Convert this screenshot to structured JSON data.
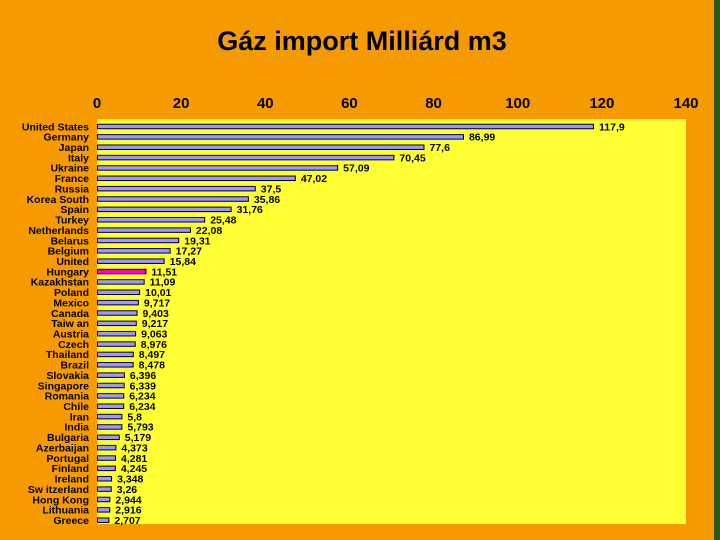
{
  "colors": {
    "slide_background": "#f59a00",
    "plot_background": "#ffff33",
    "bar_fill": "#9999ff",
    "highlight_bar_fill": "#ff00cc",
    "frame_green": "#2f5a14"
  },
  "chart_data": {
    "type": "bar",
    "orientation": "horizontal",
    "title": "Gáz import Milliárd m3",
    "xlabel": "",
    "ylabel": "",
    "xlim": [
      0,
      140
    ],
    "xticks": [
      0,
      20,
      40,
      60,
      80,
      100,
      120,
      140
    ],
    "axis_position": "top",
    "grid": false,
    "legend": "none",
    "highlight": "Hungary",
    "categories": [
      "United States",
      "Germany",
      "Japan",
      "Italy",
      "Ukraine",
      "France",
      "Russia",
      "Korea South",
      "Spain",
      "Turkey",
      "Netherlands",
      "Belarus",
      "Belgium",
      "United",
      "Hungary",
      "Kazakhstan",
      "Poland",
      "Mexico",
      "Canada",
      "Taiw an",
      "Austria",
      "Czech",
      "Thailand",
      "Brazil",
      "Slovakia",
      "Singapore",
      "Romania",
      "Chile",
      "Iran",
      "India",
      "Bulgaria",
      "Azerbaijan",
      "Portugal",
      "Finland",
      "Ireland",
      "Sw itzerland",
      "Hong Kong",
      "Lithuania",
      "Greece"
    ],
    "values": [
      117.9,
      86.99,
      77.6,
      70.45,
      57.09,
      47.02,
      37.5,
      35.86,
      31.76,
      25.48,
      22.08,
      19.31,
      17.27,
      15.84,
      11.51,
      11.09,
      10.01,
      9.717,
      9.403,
      9.217,
      9.063,
      8.976,
      8.497,
      8.478,
      6.396,
      6.339,
      6.234,
      6.234,
      5.8,
      5.793,
      5.179,
      4.373,
      4.281,
      4.245,
      3.348,
      3.26,
      2.944,
      2.916,
      2.707
    ],
    "value_labels": [
      "117,9",
      "86,99",
      "77,6",
      "70,45",
      "57,09",
      "47,02",
      "37,5",
      "35,86",
      "31,76",
      "25,48",
      "22,08",
      "19,31",
      "17,27",
      "15,84",
      "11,51",
      "11,09",
      "10,01",
      "9,717",
      "9,403",
      "9,217",
      "9,063",
      "8,976",
      "8,497",
      "8,478",
      "6,396",
      "6,339",
      "6,234",
      "6,234",
      "5,8",
      "5,793",
      "5,179",
      "4,373",
      "4,281",
      "4,245",
      "3,348",
      "3,26",
      "2,944",
      "2,916",
      "2,707"
    ]
  }
}
